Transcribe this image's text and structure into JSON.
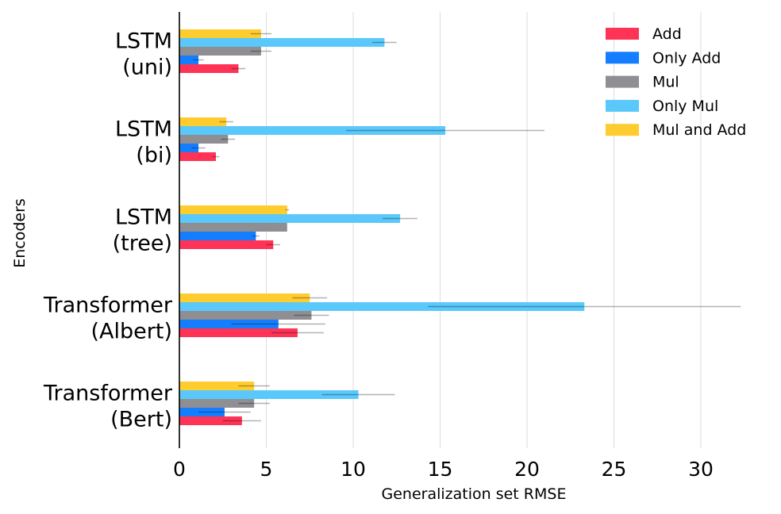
{
  "chart_data": {
    "type": "bar",
    "orientation": "horizontal",
    "xlabel": "Generalization set RMSE",
    "ylabel": "Encoders",
    "xlim": [
      0,
      34
    ],
    "xticks": [
      0,
      5,
      10,
      15,
      20,
      25,
      30
    ],
    "grid": "vertical",
    "legend_position": "top-right",
    "categories": [
      [
        "LSTM",
        "(uni)"
      ],
      [
        "LSTM",
        "(bi)"
      ],
      [
        "LSTM",
        "(tree)"
      ],
      [
        "Transformer",
        "(Albert)"
      ],
      [
        "Transformer",
        "(Bert)"
      ]
    ],
    "series": [
      {
        "name": "Add",
        "color": "#fe3356",
        "values": [
          3.4,
          2.1,
          5.4,
          6.8,
          3.6
        ],
        "errors": [
          0.4,
          0.2,
          0.4,
          1.5,
          1.1
        ]
      },
      {
        "name": "Only Add",
        "color": "#157eff",
        "values": [
          1.1,
          1.1,
          4.4,
          5.7,
          2.6
        ],
        "errors": [
          0.3,
          0.4,
          0.2,
          2.7,
          1.5
        ]
      },
      {
        "name": "Mul",
        "color": "#8e8e93",
        "values": [
          4.7,
          2.8,
          6.2,
          7.6,
          4.3
        ],
        "errors": [
          0.6,
          0.4,
          0.0,
          1.0,
          0.9
        ]
      },
      {
        "name": "Only Mul",
        "color": "#5ac8fa",
        "values": [
          11.8,
          15.3,
          12.7,
          23.3,
          10.3
        ],
        "errors": [
          0.7,
          5.7,
          1.0,
          9.0,
          2.1
        ]
      },
      {
        "name": "Mul and Add",
        "color": "#fecc2f",
        "values": [
          4.7,
          2.7,
          6.2,
          7.5,
          4.3
        ],
        "errors": [
          0.6,
          0.4,
          0.1,
          1.0,
          0.9
        ]
      }
    ]
  }
}
